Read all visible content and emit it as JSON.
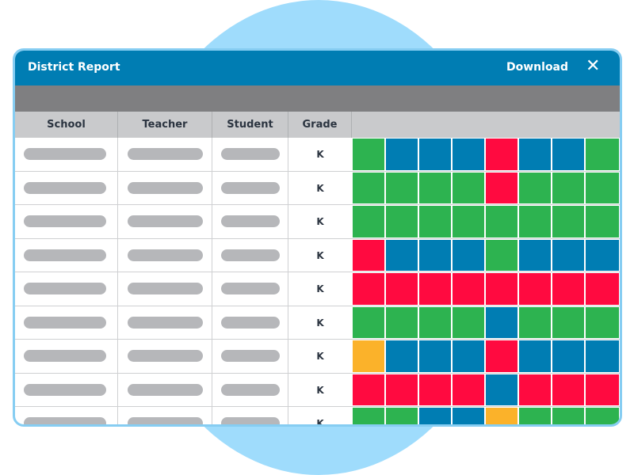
{
  "window": {
    "title": "District Report",
    "download_label": "Download",
    "close_symbol": "✕"
  },
  "table": {
    "columns": [
      "School",
      "Teacher",
      "Student",
      "Grade"
    ],
    "rows": [
      {
        "grade": "K",
        "cells": [
          "green",
          "blue",
          "blue",
          "blue",
          "red",
          "blue",
          "blue",
          "green"
        ]
      },
      {
        "grade": "K",
        "cells": [
          "green",
          "green",
          "green",
          "green",
          "red",
          "green",
          "green",
          "green"
        ]
      },
      {
        "grade": "K",
        "cells": [
          "green",
          "green",
          "green",
          "green",
          "green",
          "green",
          "green",
          "green"
        ]
      },
      {
        "grade": "K",
        "cells": [
          "red",
          "blue",
          "blue",
          "blue",
          "green",
          "blue",
          "blue",
          "blue"
        ]
      },
      {
        "grade": "K",
        "cells": [
          "red",
          "red",
          "red",
          "red",
          "red",
          "red",
          "red",
          "red"
        ]
      },
      {
        "grade": "K",
        "cells": [
          "green",
          "green",
          "green",
          "green",
          "blue",
          "green",
          "green",
          "green"
        ]
      },
      {
        "grade": "K",
        "cells": [
          "yellow",
          "blue",
          "blue",
          "blue",
          "red",
          "blue",
          "blue",
          "blue"
        ]
      },
      {
        "grade": "K",
        "cells": [
          "red",
          "red",
          "red",
          "red",
          "blue",
          "red",
          "red",
          "red"
        ]
      },
      {
        "grade": "K",
        "cells": [
          "green",
          "green",
          "blue",
          "blue",
          "yellow",
          "green",
          "green",
          "green"
        ]
      }
    ]
  },
  "colors": {
    "green": "#2db350",
    "blue": "#007db3",
    "red": "#ff0a40",
    "yellow": "#fbb22a",
    "titlebar": "#007db3",
    "background_circle": "#9fdcfc"
  }
}
